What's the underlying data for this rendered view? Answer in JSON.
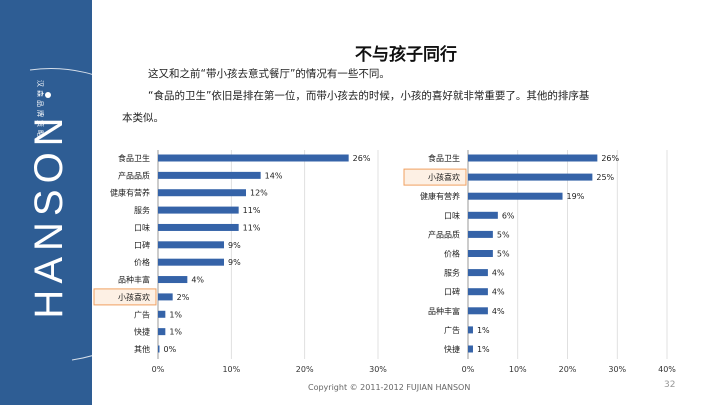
{
  "slide": {
    "title": "不与孩子同行",
    "paragraph_lines": [
      "这又和之前“带小孩去意式餐厅”的情况有一些不同。",
      "“食品的卫生”依旧是排在第一位，而带小孩去的时候，小孩的喜好就非常重要了。其他的排序基",
      "本类似。"
    ],
    "footer": "Copyright © 2011-2012 FUJIAN  HANSON",
    "page_number": "32"
  },
  "brand": {
    "logo_text": "HANSON",
    "logo_subtext": "汉森品牌策略",
    "sidebar_color": "#2e5d94"
  },
  "colors": {
    "bar": "#3563a8",
    "highlight_border": "#f0a060",
    "highlight_fill": "#fdf0e4",
    "grid": "#d9d9d9"
  },
  "chart_data": [
    {
      "type": "bar",
      "orientation": "horizontal",
      "title": "",
      "categories": [
        "食品卫生",
        "产品品质",
        "健康有营养",
        "服务",
        "口味",
        "口碑",
        "价格",
        "品种丰富",
        "小孩喜欢",
        "广告",
        "快捷",
        "其他"
      ],
      "values": [
        26,
        14,
        12,
        11,
        11,
        9,
        9,
        4,
        2,
        1,
        1,
        0
      ],
      "value_labels": [
        "26%",
        "14%",
        "12%",
        "11%",
        "11%",
        "9%",
        "9%",
        "4%",
        "2%",
        "1%",
        "1%",
        "0%"
      ],
      "xlim": [
        0,
        30
      ],
      "xticks": [
        "0%",
        "10%",
        "20%",
        "30%"
      ],
      "highlight": "小孩喜欢",
      "xlabel": "",
      "ylabel": ""
    },
    {
      "type": "bar",
      "orientation": "horizontal",
      "title": "",
      "categories": [
        "食品卫生",
        "小孩喜欢",
        "健康有营养",
        "口味",
        "产品品质",
        "价格",
        "服务",
        "口碑",
        "品种丰富",
        "广告",
        "快捷"
      ],
      "values": [
        26,
        25,
        19,
        6,
        5,
        5,
        4,
        4,
        4,
        1,
        1
      ],
      "value_labels": [
        "26%",
        "25%",
        "19%",
        "6%",
        "5%",
        "5%",
        "4%",
        "4%",
        "4%",
        "1%",
        "1%"
      ],
      "xlim": [
        0,
        40
      ],
      "xticks": [
        "0%",
        "10%",
        "20%",
        "30%",
        "40%"
      ],
      "highlight": "小孩喜欢",
      "xlabel": "",
      "ylabel": ""
    }
  ]
}
